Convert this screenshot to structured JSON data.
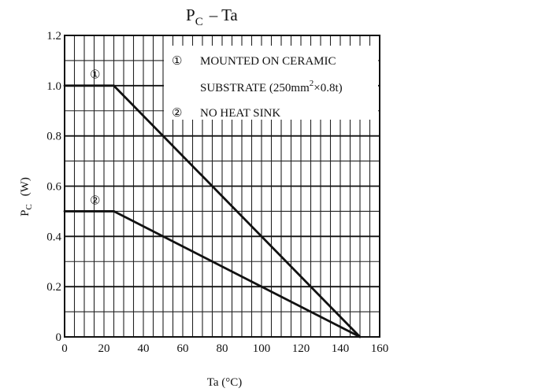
{
  "chart_data": {
    "type": "line",
    "title": "P_C - Ta",
    "title_main": "P",
    "title_sub": "C",
    "title_rest": "– Ta",
    "xlabel": "Ta (°C)",
    "ylabel": "PC (W)",
    "ylabel_main": "P",
    "ylabel_sub": "C",
    "ylabel_rest": "(W)",
    "xlim": [
      0,
      160
    ],
    "ylim": [
      0,
      1.2
    ],
    "x_ticks": [
      0,
      20,
      40,
      60,
      80,
      100,
      120,
      140,
      160
    ],
    "x_tick_labels": [
      "0",
      "20",
      "40",
      "60",
      "80",
      "100",
      "120",
      "140",
      "160"
    ],
    "y_ticks": [
      0,
      0.2,
      0.4,
      0.6,
      0.8,
      1.0,
      1.2
    ],
    "y_tick_labels": [
      "0",
      "0.2",
      "0.4",
      "0.6",
      "0.8",
      "1.0",
      "1.2"
    ],
    "x_minor_step": 5,
    "y_minor_step": 0.1,
    "grid": true,
    "series": [
      {
        "name": "①",
        "x": [
          0,
          25,
          150
        ],
        "y": [
          1.0,
          1.0,
          0
        ],
        "marker_label": "①",
        "marker_at": [
          8,
          1.06
        ]
      },
      {
        "name": "②",
        "x": [
          0,
          25,
          150
        ],
        "y": [
          0.5,
          0.5,
          0
        ],
        "marker_label": "②",
        "marker_at": [
          8,
          0.56
        ]
      }
    ],
    "legend_position": "top-right",
    "legend": [
      {
        "marker": "①",
        "text": "MOUNTED ON CERAMIC"
      },
      {
        "marker": "",
        "text": "SUBSTRATE (250mm",
        "sup": "2",
        "text_after": "×0.8t)"
      },
      {
        "marker": "②",
        "text": "NO HEAT SINK"
      }
    ],
    "colors": {
      "line": "#111111",
      "grid": "#222222",
      "background": "#ffffff"
    }
  }
}
